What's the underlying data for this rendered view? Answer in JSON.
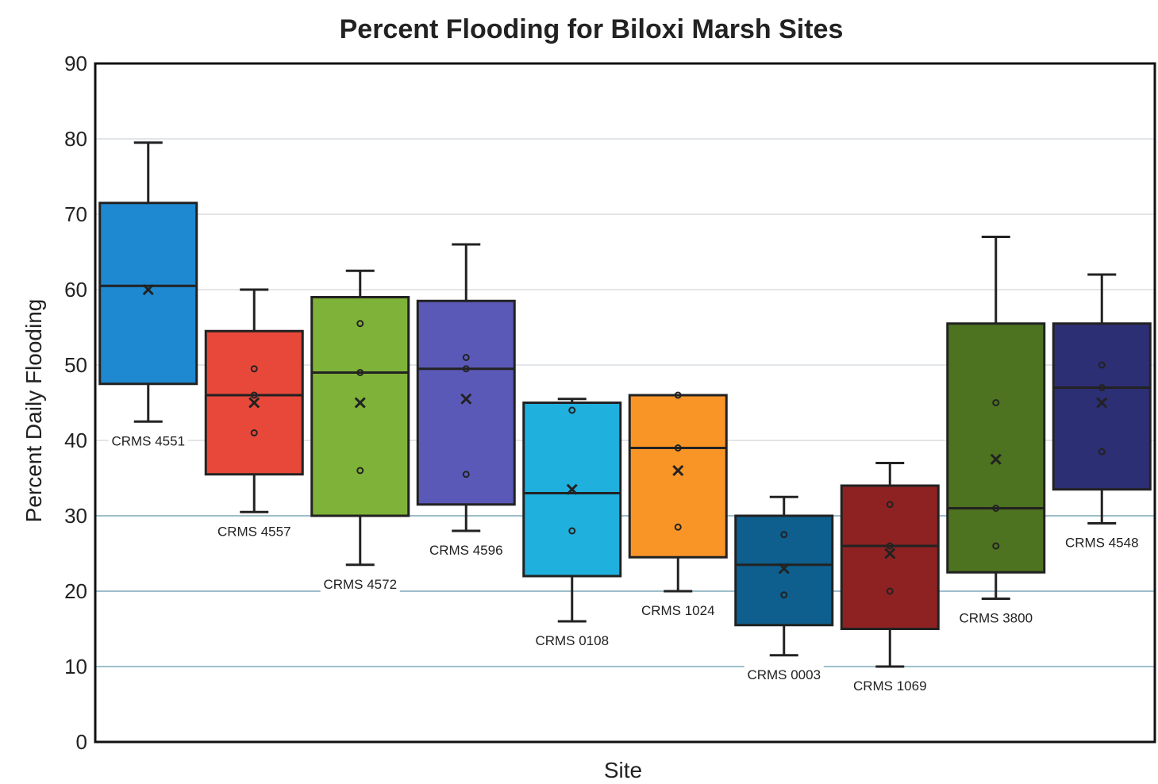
{
  "chart_data": {
    "type": "box",
    "title": "Percent Flooding for Biloxi Marsh Sites",
    "xlabel": "Site",
    "ylabel": "Percent  Daily Flooding",
    "ylim": [
      0,
      90
    ],
    "yticks": [
      0,
      10,
      20,
      30,
      40,
      50,
      60,
      70,
      80,
      90
    ],
    "grid": true,
    "series": [
      {
        "name": "CRMS 4551",
        "color": "#1e88d0",
        "whisker_low": 42.5,
        "q1": 47.5,
        "median": 60.5,
        "q3": 71.5,
        "whisker_high": 79.5,
        "mean": 60,
        "points": []
      },
      {
        "name": "CRMS 4557",
        "color": "#e8483a",
        "whisker_low": 30.5,
        "q1": 35.5,
        "median": 46,
        "q3": 54.5,
        "whisker_high": 60,
        "mean": 45,
        "points": [
          49.5,
          46,
          41
        ]
      },
      {
        "name": "CRMS 4572",
        "color": "#7fb238",
        "whisker_low": 23.5,
        "q1": 30,
        "median": 49,
        "q3": 59,
        "whisker_high": 62.5,
        "mean": 45,
        "points": [
          55.5,
          49,
          36
        ]
      },
      {
        "name": "CRMS 4596",
        "color": "#5b59b8",
        "whisker_low": 28,
        "q1": 31.5,
        "median": 49.5,
        "q3": 58.5,
        "whisker_high": 66,
        "mean": 45.5,
        "points": [
          51,
          49.5,
          35.5
        ]
      },
      {
        "name": "CRMS 0108",
        "color": "#1fb0de",
        "whisker_low": 16,
        "q1": 22,
        "median": 33,
        "q3": 45,
        "whisker_high": 45.5,
        "mean": 33.5,
        "points": [
          44,
          28
        ]
      },
      {
        "name": "CRMS 1024",
        "color": "#f99527",
        "whisker_low": 20,
        "q1": 24.5,
        "median": 39,
        "q3": 46,
        "whisker_high": 46,
        "mean": 36,
        "points": [
          46,
          39,
          28.5
        ]
      },
      {
        "name": "CRMS 0003",
        "color": "#0e5f8e",
        "whisker_low": 11.5,
        "q1": 15.5,
        "median": 23.5,
        "q3": 30,
        "whisker_high": 32.5,
        "mean": 23,
        "points": [
          27.5,
          19.5
        ]
      },
      {
        "name": "CRMS 1069",
        "color": "#8e2223",
        "whisker_low": 10,
        "q1": 15,
        "median": 26,
        "q3": 34,
        "whisker_high": 37,
        "mean": 25,
        "points": [
          31.5,
          26,
          20
        ]
      },
      {
        "name": "CRMS 3800",
        "color": "#4d7220",
        "whisker_low": 19,
        "q1": 22.5,
        "median": 31,
        "q3": 55.5,
        "whisker_high": 67,
        "mean": 37.5,
        "points": [
          45,
          31,
          26
        ]
      },
      {
        "name": "CRMS 4548",
        "color": "#2d2f75",
        "whisker_low": 29,
        "q1": 33.5,
        "median": 47,
        "q3": 55.5,
        "whisker_high": 62,
        "mean": 45,
        "points": [
          50,
          47,
          38.5
        ]
      }
    ]
  }
}
